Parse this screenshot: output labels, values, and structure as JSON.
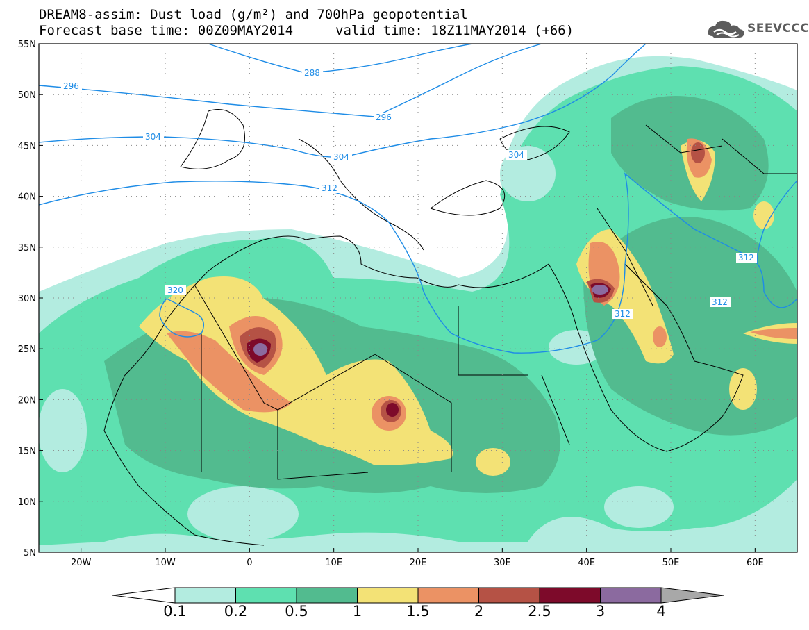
{
  "title": {
    "line1": "DREAM8-assim: Dust load (g/m²) and 700hPa geopotential",
    "line2_left": "Forecast base time: 00Z09MAY2014",
    "line2_right": "valid time: 18Z11MAY2014 (+66)"
  },
  "logo": {
    "text": "SEEVCCC",
    "icon": "cloud-icon"
  },
  "map": {
    "lon_range": [
      -25,
      65
    ],
    "lat_range": [
      5,
      55
    ],
    "lat_ticks": [
      "55N",
      "50N",
      "45N",
      "40N",
      "35N",
      "30N",
      "25N",
      "20N",
      "15N",
      "10N",
      "5N"
    ],
    "lon_ticks": [
      "20W",
      "10W",
      "0",
      "10E",
      "20E",
      "30E",
      "40E",
      "50E",
      "60E"
    ],
    "grid": "dotted",
    "contour_labels": [
      "296",
      "288",
      "296",
      "304",
      "304",
      "312",
      "304",
      "320",
      "312",
      "312",
      "312"
    ]
  },
  "colorbar": {
    "labels": [
      "0.1",
      "0.2",
      "0.5",
      "1",
      "1.5",
      "2",
      "2.5",
      "3",
      "4"
    ],
    "colors": [
      "#ffffff",
      "#b3ece0",
      "#5ee0b0",
      "#52bb8f",
      "#f3e276",
      "#eb9264",
      "#b55245",
      "#7d0a2a",
      "#8b6a9f",
      "#a8a8a8"
    ]
  },
  "colors": {
    "contour_line": "#1e8ce6",
    "dust_01": "#b3ece0",
    "dust_02": "#5ee0b0",
    "dust_05": "#52bb8f",
    "dust_1": "#f3e276",
    "dust_15": "#eb9264",
    "dust_2": "#b55245",
    "dust_25": "#7d0a2a",
    "dust_3": "#8b6a9f"
  }
}
